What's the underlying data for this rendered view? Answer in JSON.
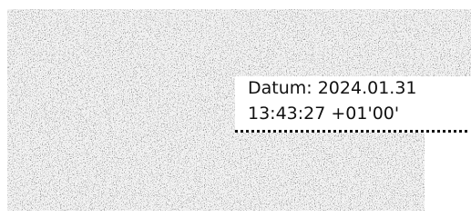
{
  "signature": {
    "lines": [
      "Datum: 2024.01.31",
      "13:43:27 +01'00'"
    ]
  }
}
